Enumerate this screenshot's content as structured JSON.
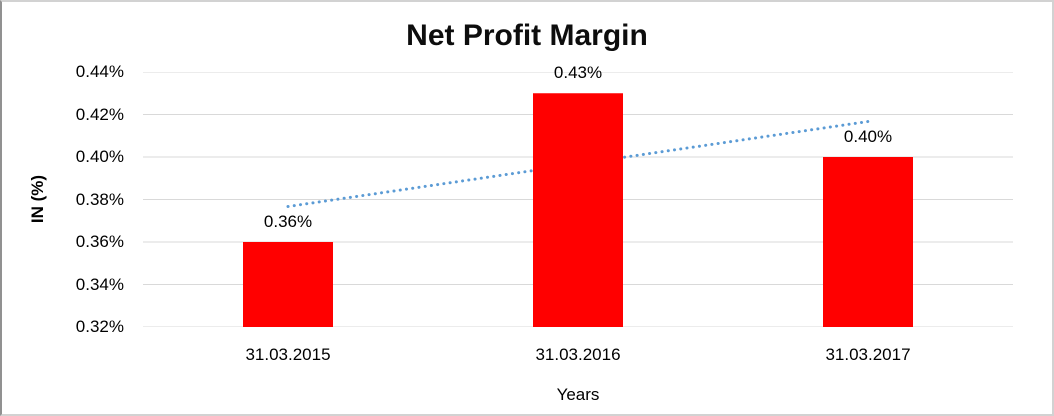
{
  "chart_data": {
    "type": "bar",
    "title": "Net Profit Margin",
    "xlabel": "Years",
    "ylabel": "IN (%)",
    "categories": [
      "31.03.2015",
      "31.03.2016",
      "31.03.2017"
    ],
    "values": [
      0.36,
      0.43,
      0.4
    ],
    "data_labels": [
      "0.36%",
      "0.43%",
      "0.40%"
    ],
    "ylim": [
      0.32,
      0.44
    ],
    "yticks": [
      0.44,
      0.42,
      0.4,
      0.38,
      0.36,
      0.34,
      0.32
    ],
    "ytick_labels": [
      "0.44%",
      "0.42%",
      "0.40%",
      "0.38%",
      "0.36%",
      "0.34%",
      "0.32%"
    ],
    "grid": true,
    "legend": "none",
    "trendline": {
      "type": "linear",
      "style": "dotted",
      "fitted_values": [
        0.3767,
        0.3967,
        0.4167
      ]
    },
    "colors": {
      "bar": "#FF0000",
      "trendline": "#5B9BD5",
      "gridline": "#D9D9D9",
      "text": "#000000",
      "border": "#C9C9C9"
    }
  }
}
